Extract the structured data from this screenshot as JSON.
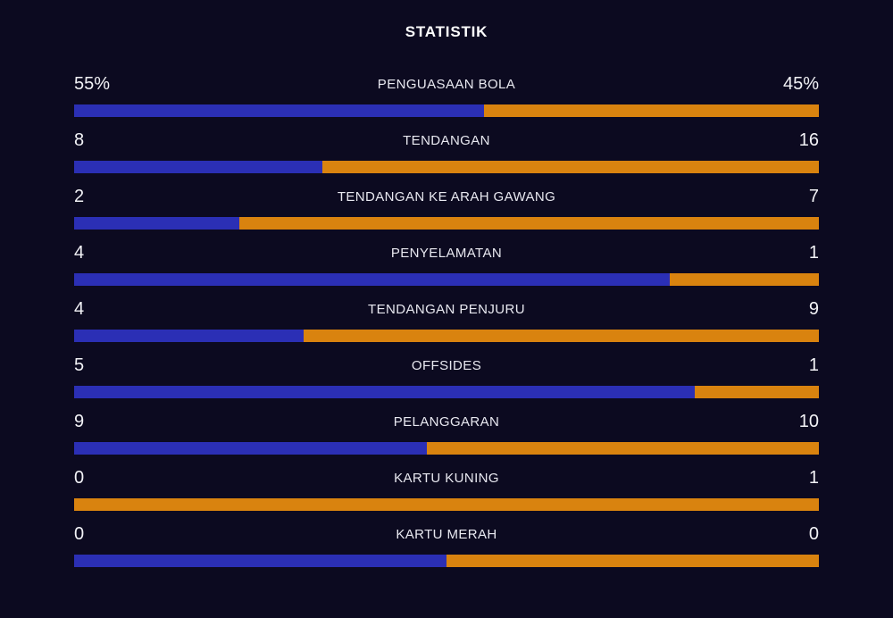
{
  "page_title": "STATISTIK",
  "colors": {
    "background": "#0c0a20",
    "home_bar": "#2b2fb5",
    "away_bar": "#d9830f",
    "title_text": "#ffffff",
    "label_text": "#e8e8f0",
    "value_text": "#f2f2f6"
  },
  "chart_data": {
    "type": "bar",
    "title": "STATISTIK",
    "orientation": "horizontal-paired-split",
    "legend_position": "none",
    "grid": false,
    "series": [
      {
        "name": "home",
        "color": "#2b2fb5"
      },
      {
        "name": "away",
        "color": "#d9830f"
      }
    ],
    "rows": [
      {
        "label": "PENGUASAAN BOLA",
        "home": "55%",
        "away": "45%",
        "home_pct": 55
      },
      {
        "label": "TENDANGAN",
        "home": "8",
        "away": "16",
        "home_pct": 33.33
      },
      {
        "label": "TENDANGAN KE ARAH GAWANG",
        "home": "2",
        "away": "7",
        "home_pct": 22.22
      },
      {
        "label": "PENYELAMATAN",
        "home": "4",
        "away": "1",
        "home_pct": 80
      },
      {
        "label": "TENDANGAN PENJURU",
        "home": "4",
        "away": "9",
        "home_pct": 30.77
      },
      {
        "label": "OFFSIDES",
        "home": "5",
        "away": "1",
        "home_pct": 83.33
      },
      {
        "label": "PELANGGARAN",
        "home": "9",
        "away": "10",
        "home_pct": 47.37
      },
      {
        "label": "KARTU KUNING",
        "home": "0",
        "away": "1",
        "home_pct": 0
      },
      {
        "label": "KARTU MERAH",
        "home": "0",
        "away": "0",
        "home_pct": 50
      }
    ]
  }
}
